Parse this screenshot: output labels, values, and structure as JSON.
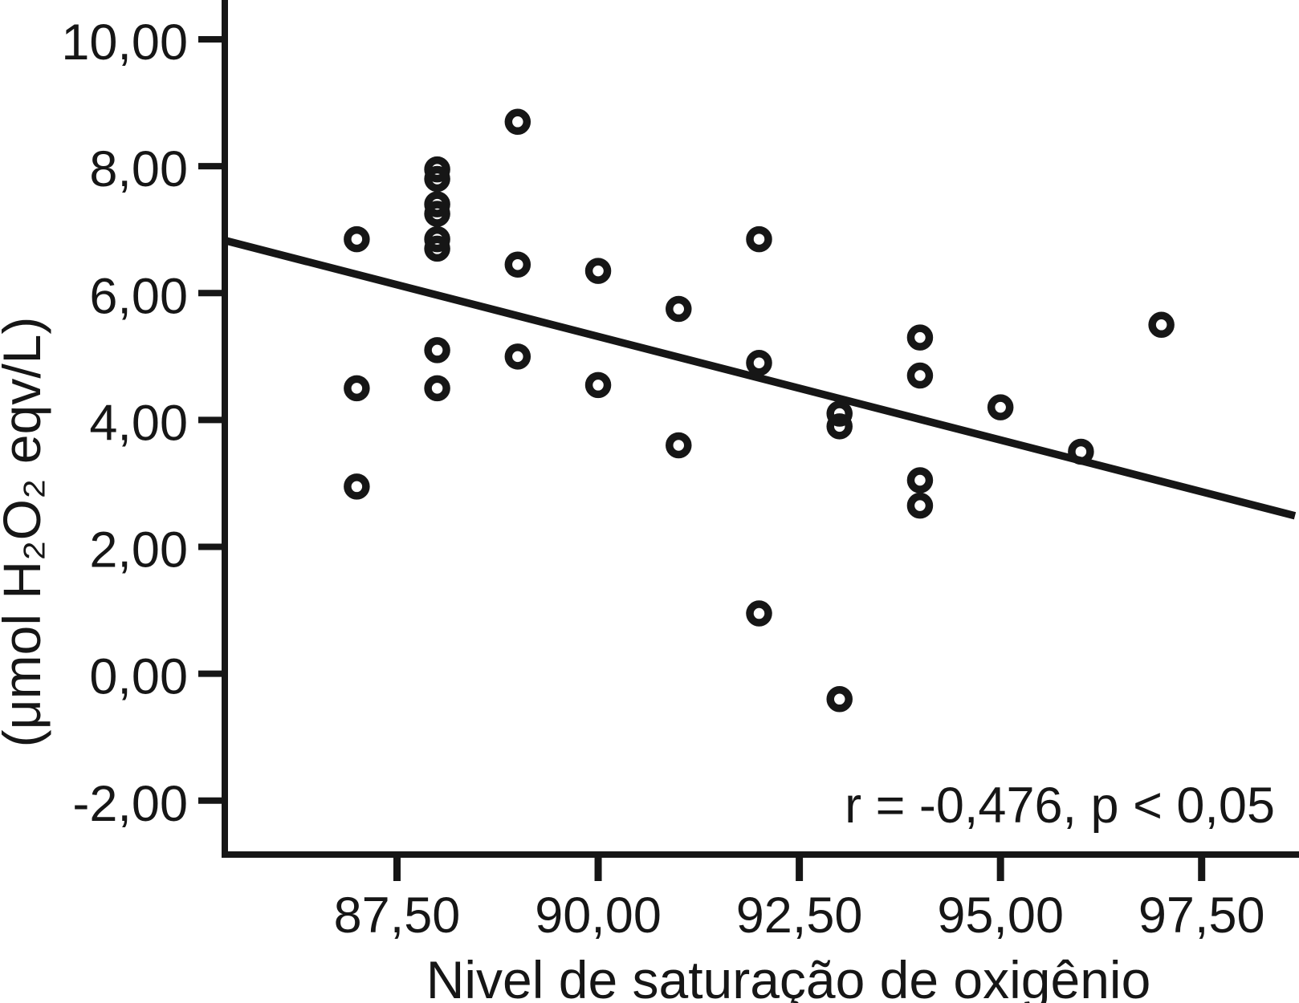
{
  "figure": {
    "background_color": "#ffffff",
    "ink_color": "#161616"
  },
  "chart_data": {
    "type": "scatter",
    "title": "",
    "xlabel": "Nivel de saturação de oxigênio",
    "ylabel": "(μmol H₂O₂ eqv/L)",
    "annotation": "r = -0,476, p < 0,05",
    "correlation_r": "-0,476",
    "p_value": "< 0,05",
    "marker": "open-circle",
    "grid": false,
    "legend": "none",
    "xlim": [
      85.36,
      98.71
    ],
    "ylim": [
      -2.85,
      10.62
    ],
    "xticks": {
      "values": [
        87.5,
        90.0,
        92.5,
        95.0,
        97.5
      ],
      "labels": [
        "87,50",
        "90,00",
        "92,50",
        "95,00",
        "97,50"
      ]
    },
    "yticks": {
      "values": [
        10,
        8,
        6,
        4,
        2,
        0,
        -2
      ],
      "labels": [
        "10,00",
        "8,00",
        "6,00",
        "4,00",
        "2,00",
        "0,00",
        "-2,00"
      ]
    },
    "points": [
      {
        "x": 87,
        "y": 6.85
      },
      {
        "x": 87,
        "y": 4.5
      },
      {
        "x": 87,
        "y": 2.95
      },
      {
        "x": 88,
        "y": 7.95
      },
      {
        "x": 88,
        "y": 7.8
      },
      {
        "x": 88,
        "y": 7.4
      },
      {
        "x": 88,
        "y": 7.25
      },
      {
        "x": 88,
        "y": 6.85
      },
      {
        "x": 88,
        "y": 6.7
      },
      {
        "x": 88,
        "y": 5.1
      },
      {
        "x": 88,
        "y": 4.5
      },
      {
        "x": 89,
        "y": 8.7
      },
      {
        "x": 89,
        "y": 6.45
      },
      {
        "x": 89,
        "y": 5.0
      },
      {
        "x": 90,
        "y": 6.35
      },
      {
        "x": 90,
        "y": 4.55
      },
      {
        "x": 91,
        "y": 5.75
      },
      {
        "x": 91,
        "y": 3.6
      },
      {
        "x": 92,
        "y": 6.85
      },
      {
        "x": 92,
        "y": 4.9
      },
      {
        "x": 92,
        "y": 0.95
      },
      {
        "x": 93,
        "y": 4.1
      },
      {
        "x": 93,
        "y": 3.9
      },
      {
        "x": 93,
        "y": -0.4
      },
      {
        "x": 94,
        "y": 5.3
      },
      {
        "x": 94,
        "y": 4.7
      },
      {
        "x": 94,
        "y": 3.05
      },
      {
        "x": 94,
        "y": 2.65
      },
      {
        "x": 95,
        "y": 4.2
      },
      {
        "x": 96,
        "y": 3.5
      },
      {
        "x": 97,
        "y": 5.5
      }
    ],
    "trend_line": {
      "x1": 85.36,
      "y1": 6.83,
      "x2": 98.66,
      "y2": 2.49
    }
  }
}
